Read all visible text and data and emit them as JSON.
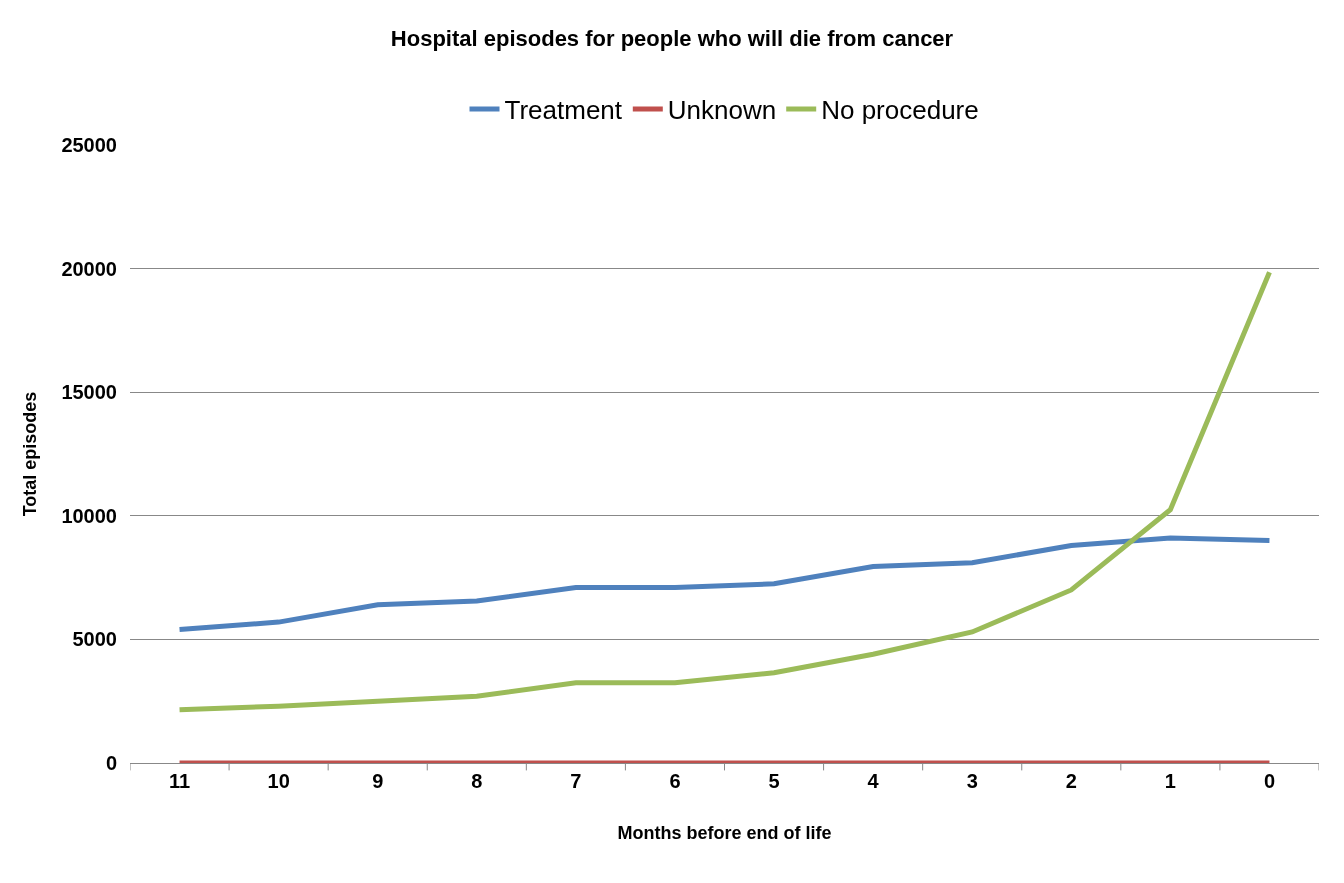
{
  "chart_data": {
    "type": "line",
    "title": "Hospital episodes for people who will die from cancer",
    "xlabel": "Months before end of life",
    "ylabel": "Total episodes",
    "categories": [
      "11",
      "10",
      "9",
      "8",
      "7",
      "6",
      "5",
      "4",
      "3",
      "2",
      "1",
      "0"
    ],
    "series": [
      {
        "name": "Treatment",
        "color": "#4f81bd",
        "values": [
          5400,
          5700,
          6400,
          6550,
          7100,
          7100,
          7250,
          7950,
          8100,
          8800,
          9100,
          9000
        ]
      },
      {
        "name": "Unknown",
        "color": "#c0504d",
        "values": [
          0,
          0,
          0,
          0,
          0,
          0,
          0,
          0,
          0,
          0,
          0,
          0
        ]
      },
      {
        "name": "No procedure",
        "color": "#9bbb59",
        "values": [
          2150,
          2300,
          2500,
          2700,
          3250,
          3250,
          3650,
          4400,
          5300,
          7000,
          10250,
          19850
        ]
      }
    ],
    "ylim": [
      0,
      25000
    ],
    "yticks": [
      0,
      5000,
      10000,
      15000,
      20000,
      25000
    ],
    "grid": "y",
    "legend": "top",
    "marker": "none",
    "line_style": "solid"
  }
}
